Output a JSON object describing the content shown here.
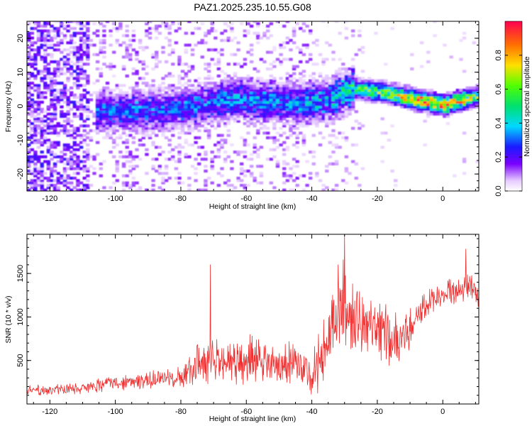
{
  "title": "PAZ1.2025.235.10.55.G08",
  "chart_data": [
    {
      "type": "heatmap",
      "xlabel": "Height of straight line (km)",
      "ylabel": "Frequency (Hz)",
      "xlim": [
        -127,
        11
      ],
      "ylim": [
        -25,
        25
      ],
      "xticks": [
        -120,
        -100,
        -80,
        -60,
        -40,
        -20,
        0
      ],
      "yticks": [
        -20,
        -10,
        0,
        10,
        20
      ],
      "xtick_labels": [
        "-120",
        "-100",
        "-80",
        "-60",
        "-40",
        "-20",
        "0"
      ],
      "ytick_labels": [
        "-20",
        "-10",
        "0",
        "10",
        "20"
      ],
      "colorbar": {
        "label": "Normalized spectral amplitude",
        "range": [
          0,
          1
        ],
        "ticks": [
          0.0,
          0.2,
          0.4,
          0.6,
          0.8
        ],
        "tick_labels": [
          "0.0",
          "0.2",
          "0.4",
          "0.6",
          "0.8"
        ]
      },
      "ridge_center_hz": {
        "x_km": [
          -105,
          -95,
          -85,
          -75,
          -65,
          -55,
          -45,
          -35,
          -28,
          -20,
          -10,
          0,
          11
        ],
        "freq_hz": [
          -2,
          -1.5,
          -1.5,
          0,
          2,
          1,
          0.5,
          1.5,
          5,
          4,
          2,
          0,
          3
        ]
      },
      "ridge_peak_amplitude": {
        "x_km": [
          -105,
          -95,
          -85,
          -75,
          -65,
          -55,
          -45,
          -35,
          -28,
          -20,
          -10,
          0,
          11
        ],
        "amplitude": [
          0.3,
          0.32,
          0.3,
          0.32,
          0.35,
          0.35,
          0.35,
          0.4,
          0.5,
          0.6,
          0.8,
          0.95,
          0.55
        ]
      }
    },
    {
      "type": "line",
      "xlabel": "Height of straight line (km)",
      "ylabel": "SNR (10 * v/v)",
      "xlim": [
        -127,
        11
      ],
      "ylim": [
        0,
        1950
      ],
      "xticks": [
        -120,
        -100,
        -80,
        -60,
        -40,
        -20,
        0
      ],
      "yticks": [
        500,
        1000,
        1500
      ],
      "xtick_labels": [
        "-120",
        "-100",
        "-80",
        "-60",
        "-40",
        "-20",
        "0"
      ],
      "ytick_labels": [
        "500",
        "1000",
        "1500"
      ],
      "series": [
        {
          "color": "#f03030",
          "envelope_x_km": [
            -127,
            -110,
            -100,
            -90,
            -80,
            -75,
            -70,
            -60,
            -50,
            -40,
            -36,
            -33,
            -30,
            -25,
            -20,
            -15,
            -10,
            -5,
            0,
            5,
            8,
            10,
            11
          ],
          "envelope_mean": [
            150,
            180,
            250,
            280,
            300,
            450,
            500,
            500,
            480,
            380,
            550,
            1000,
            1100,
            900,
            850,
            750,
            850,
            1150,
            1250,
            1300,
            1400,
            1250,
            1150
          ],
          "envelope_spread": [
            70,
            80,
            110,
            120,
            140,
            280,
            330,
            330,
            300,
            280,
            500,
            650,
            650,
            500,
            450,
            380,
            300,
            200,
            180,
            200,
            220,
            200,
            150
          ],
          "peaks": [
            {
              "x_km": -30,
              "y": 1950
            },
            {
              "x_km": -32,
              "y": 1600
            },
            {
              "x_km": -71,
              "y": 1600
            },
            {
              "x_km": 7,
              "y": 1780
            }
          ]
        }
      ]
    }
  ]
}
